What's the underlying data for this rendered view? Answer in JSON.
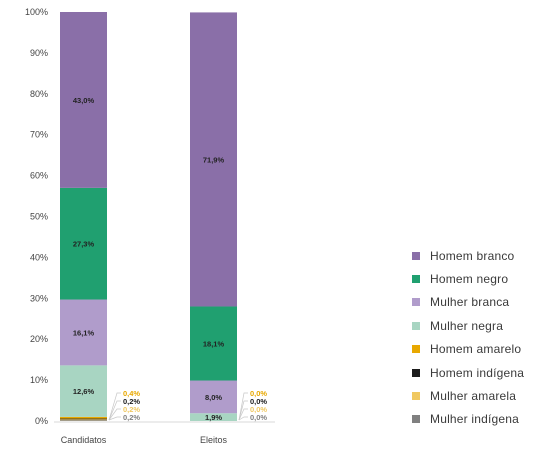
{
  "chart_data": {
    "type": "bar",
    "stacked": true,
    "categories": [
      "Candidatos",
      "Eleitos"
    ],
    "ylim": [
      0,
      100
    ],
    "yticks": [
      "0%",
      "10%",
      "20%",
      "30%",
      "40%",
      "50%",
      "60%",
      "70%",
      "80%",
      "90%",
      "100%"
    ],
    "grid": false,
    "legend_position": "right",
    "series": [
      {
        "name": "Homem branco",
        "color": "#8a6fa8",
        "values": [
          43.0,
          71.9
        ],
        "labels": [
          "43,0%",
          "71,9%"
        ]
      },
      {
        "name": "Homem negro",
        "color": "#20a070",
        "values": [
          27.3,
          18.1
        ],
        "labels": [
          "27,3%",
          "18,1%"
        ]
      },
      {
        "name": "Mulher branca",
        "color": "#b09ccb",
        "values": [
          16.1,
          8.0
        ],
        "labels": [
          "16,1%",
          "8,0%"
        ]
      },
      {
        "name": "Mulher negra",
        "color": "#a8d5c2",
        "values": [
          12.6,
          1.9
        ],
        "labels": [
          "12,6%",
          "1,9%"
        ]
      },
      {
        "name": "Homem amarelo",
        "color": "#e8a800",
        "values": [
          0.4,
          0.0
        ],
        "labels": [
          "0,4%",
          "0,0%"
        ]
      },
      {
        "name": "Homem indígena",
        "color": "#1c1c1c",
        "values": [
          0.2,
          0.0
        ],
        "labels": [
          "0,2%",
          "0,0%"
        ]
      },
      {
        "name": "Mulher amarela",
        "color": "#f0c860",
        "values": [
          0.2,
          0.0
        ],
        "labels": [
          "0,2%",
          "0,0%"
        ]
      },
      {
        "name": "Mulher indígena",
        "color": "#808080",
        "values": [
          0.2,
          0.0
        ],
        "labels": [
          "0,2%",
          "0,0%"
        ]
      }
    ]
  }
}
